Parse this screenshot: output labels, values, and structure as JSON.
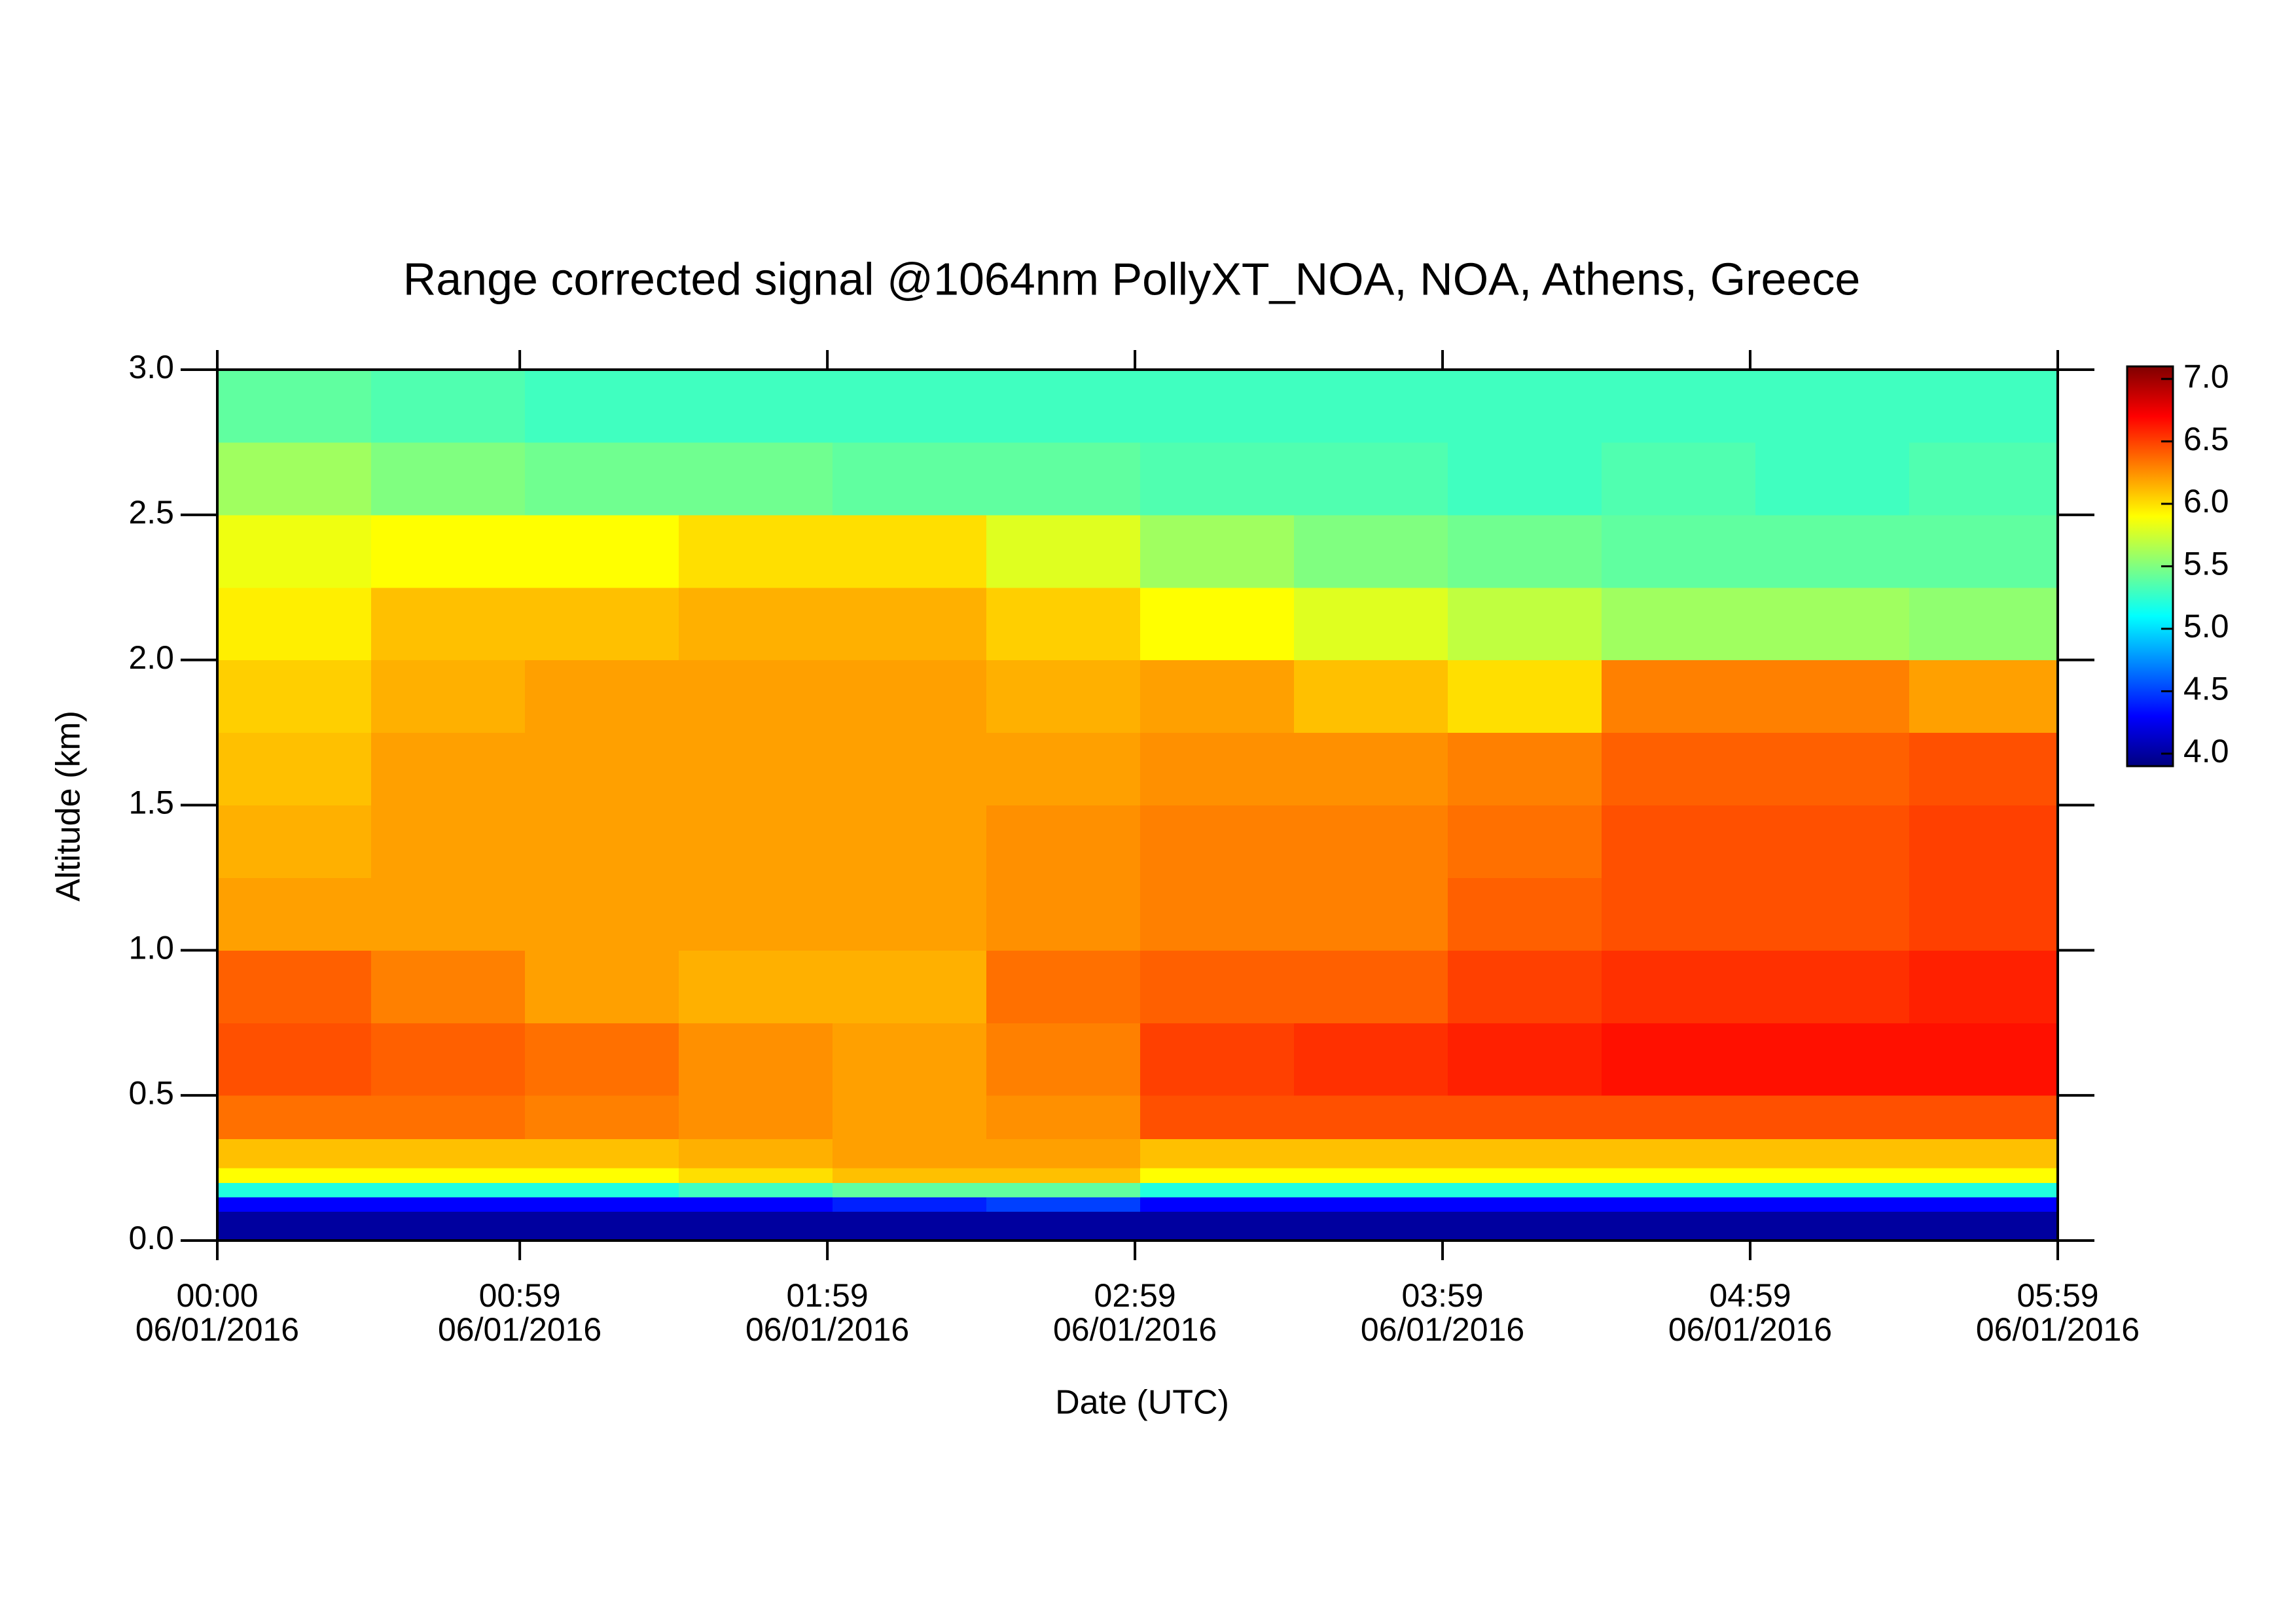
{
  "chart_data": {
    "type": "heatmap",
    "title": "Range corrected signal @1064nm  PollyXT_NOA, NOA, Athens, Greece",
    "xlabel": "Date (UTC)",
    "ylabel": "Altitude (km)",
    "xlim": [
      0,
      359
    ],
    "xticks": [
      {
        "value": 0,
        "label": "00:00\n06/01/2016"
      },
      {
        "value": 59,
        "label": "00:59\n06/01/2016"
      },
      {
        "value": 119,
        "label": "01:59\n06/01/2016"
      },
      {
        "value": 179,
        "label": "02:59\n06/01/2016"
      },
      {
        "value": 239,
        "label": "03:59\n06/01/2016"
      },
      {
        "value": 299,
        "label": "04:59\n06/01/2016"
      },
      {
        "value": 359,
        "label": "05:59\n06/01/2016"
      }
    ],
    "ylim": [
      0,
      3.0
    ],
    "yticks": [
      {
        "value": 0,
        "label": "0.0"
      },
      0.5,
      {
        "value": 1,
        "label": "1.0"
      },
      1.5,
      {
        "value": 2,
        "label": "2.0"
      },
      2.5,
      {
        "value": 3,
        "label": "3.0"
      }
    ],
    "clim": [
      3.9,
      7.1
    ],
    "cticks": [
      {
        "value": 4,
        "label": "4.0"
      },
      4.5,
      {
        "value": 5,
        "label": "5.0"
      },
      5.5,
      {
        "value": 6,
        "label": "6.0"
      },
      6.5,
      {
        "value": 7,
        "label": "7.0"
      }
    ],
    "colormap": [
      "#00007f",
      "#0000ff",
      "#0080ff",
      "#00ffff",
      "#80ff80",
      "#ffff00",
      "#ff8000",
      "#ff0000",
      "#7f0000"
    ],
    "x_edges": [
      0,
      30,
      60,
      90,
      120,
      150,
      180,
      210,
      240,
      270,
      300,
      330,
      359
    ],
    "y_edges": [
      0,
      0.1,
      0.15,
      0.2,
      0.25,
      0.35,
      0.5,
      0.75,
      1.0,
      1.25,
      1.5,
      1.75,
      2.0,
      2.25,
      2.5,
      2.75,
      3.0
    ],
    "z": [
      [
        4.0,
        4.0,
        4.0,
        4.0,
        4.0,
        4.0,
        4.0,
        4.0,
        4.0,
        4.0,
        4.0,
        4.0
      ],
      [
        4.3,
        4.3,
        4.3,
        4.3,
        4.4,
        4.5,
        4.3,
        4.3,
        4.3,
        4.3,
        4.3,
        4.3
      ],
      [
        5.2,
        5.2,
        5.2,
        5.3,
        5.4,
        5.4,
        5.2,
        5.2,
        5.2,
        5.2,
        5.2,
        5.2
      ],
      [
        5.9,
        5.9,
        5.9,
        6.0,
        6.1,
        6.1,
        5.9,
        5.9,
        5.9,
        5.9,
        5.9,
        5.9
      ],
      [
        6.1,
        6.1,
        6.1,
        6.15,
        6.2,
        6.2,
        6.1,
        6.1,
        6.1,
        6.1,
        6.1,
        6.1
      ],
      [
        6.35,
        6.35,
        6.3,
        6.25,
        6.2,
        6.25,
        6.45,
        6.45,
        6.45,
        6.45,
        6.45,
        6.45
      ],
      [
        6.45,
        6.4,
        6.35,
        6.25,
        6.2,
        6.3,
        6.5,
        6.55,
        6.6,
        6.65,
        6.65,
        6.65
      ],
      [
        6.4,
        6.3,
        6.2,
        6.15,
        6.15,
        6.35,
        6.4,
        6.4,
        6.5,
        6.55,
        6.55,
        6.6
      ],
      [
        6.2,
        6.2,
        6.2,
        6.2,
        6.2,
        6.25,
        6.3,
        6.3,
        6.4,
        6.45,
        6.45,
        6.5
      ],
      [
        6.15,
        6.2,
        6.2,
        6.2,
        6.2,
        6.25,
        6.3,
        6.3,
        6.35,
        6.45,
        6.45,
        6.5
      ],
      [
        6.1,
        6.2,
        6.2,
        6.2,
        6.2,
        6.2,
        6.25,
        6.25,
        6.3,
        6.4,
        6.4,
        6.45
      ],
      [
        6.05,
        6.15,
        6.2,
        6.2,
        6.2,
        6.15,
        6.2,
        6.1,
        6.0,
        6.3,
        6.3,
        6.2
      ],
      [
        5.95,
        6.1,
        6.1,
        6.15,
        6.15,
        6.05,
        5.9,
        5.8,
        5.7,
        5.6,
        5.6,
        5.55
      ],
      [
        5.85,
        5.9,
        5.9,
        6.0,
        6.0,
        5.8,
        5.6,
        5.5,
        5.45,
        5.4,
        5.4,
        5.4
      ],
      [
        5.6,
        5.5,
        5.45,
        5.45,
        5.4,
        5.4,
        5.35,
        5.35,
        5.3,
        5.35,
        5.3,
        5.35
      ],
      [
        5.4,
        5.35,
        5.3,
        5.3,
        5.3,
        5.3,
        5.3,
        5.3,
        5.3,
        5.3,
        5.3,
        5.3
      ]
    ]
  }
}
